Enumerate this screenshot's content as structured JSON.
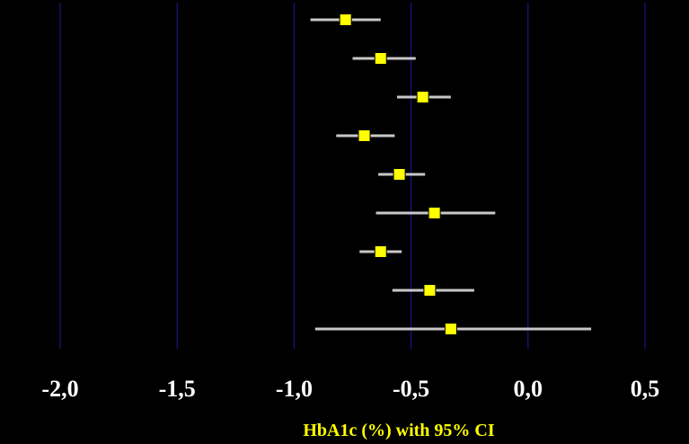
{
  "chart_data": {
    "type": "forest",
    "xlabel": "HbA1c (%) with 95% CI",
    "xlim": [
      -2.0,
      0.5
    ],
    "x_ticks": [
      -2.0,
      -1.5,
      -1.0,
      -0.5,
      0.0,
      0.5
    ],
    "x_tick_labels": [
      "-2,0",
      "-1,5",
      "-1,0",
      "-0,5",
      "0,0",
      "0,5"
    ],
    "grid": "vertical",
    "colors": {
      "background": "#000000",
      "grid": "#1a1aa0",
      "ci": "#c8c8c8",
      "marker": "#ffff00"
    },
    "rows": [
      {
        "estimate": -0.78,
        "ci_low": -0.93,
        "ci_high": -0.63
      },
      {
        "estimate": -0.63,
        "ci_low": -0.75,
        "ci_high": -0.48
      },
      {
        "estimate": -0.45,
        "ci_low": -0.56,
        "ci_high": -0.33
      },
      {
        "estimate": -0.7,
        "ci_low": -0.82,
        "ci_high": -0.57
      },
      {
        "estimate": -0.55,
        "ci_low": -0.64,
        "ci_high": -0.44
      },
      {
        "estimate": -0.4,
        "ci_low": -0.65,
        "ci_high": -0.14
      },
      {
        "estimate": -0.63,
        "ci_low": -0.72,
        "ci_high": -0.54
      },
      {
        "estimate": -0.42,
        "ci_low": -0.58,
        "ci_high": -0.23
      },
      {
        "estimate": -0.33,
        "ci_low": -0.91,
        "ci_high": 0.27
      }
    ]
  }
}
